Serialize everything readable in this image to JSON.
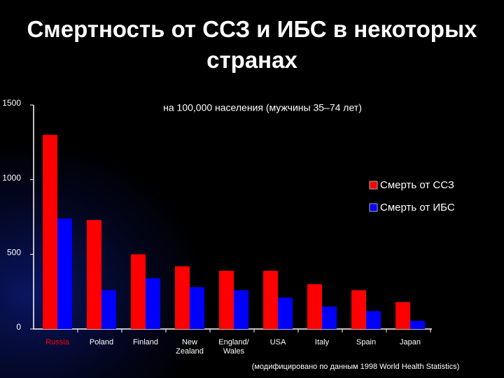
{
  "chart_data": {
    "type": "bar",
    "title": "Смертность от ССЗ и ИБС в некоторых\nстранах",
    "subtitle": "на 100,000 населения (мужчины 35–74 лет)",
    "note": "(модифицировано по данным 1998 World Health Statistics)",
    "categories": [
      "Russia",
      "Poland",
      "Finland",
      "New\nZealand",
      "England/\nWales",
      "USA",
      "Italy",
      "Spain",
      "Japan"
    ],
    "category_colors": [
      "#ff0000",
      "#ffffff",
      "#ffffff",
      "#ffffff",
      "#ffffff",
      "#ffffff",
      "#ffffff",
      "#ffffff",
      "#ffffff"
    ],
    "series": [
      {
        "name": "Смерть от ССЗ",
        "color": "#ff0000",
        "values": [
          1300,
          730,
          500,
          420,
          390,
          390,
          300,
          260,
          180
        ]
      },
      {
        "name": "Смерть от ИБС",
        "color": "#0000ff",
        "values": [
          740,
          260,
          340,
          280,
          260,
          210,
          150,
          120,
          55
        ]
      }
    ],
    "ylim": [
      0,
      1500
    ],
    "yticks": [
      0,
      500,
      1000,
      1500
    ],
    "grid": false,
    "legend": "right"
  }
}
